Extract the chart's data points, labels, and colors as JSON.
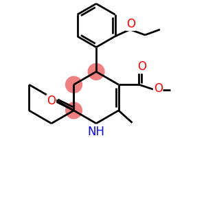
{
  "background_color": "#ffffff",
  "atom_colors": {
    "C": "#000000",
    "N": "#0000ff",
    "O": "#ff0000"
  },
  "highlight_color": "#f08080",
  "lw": 2.0
}
